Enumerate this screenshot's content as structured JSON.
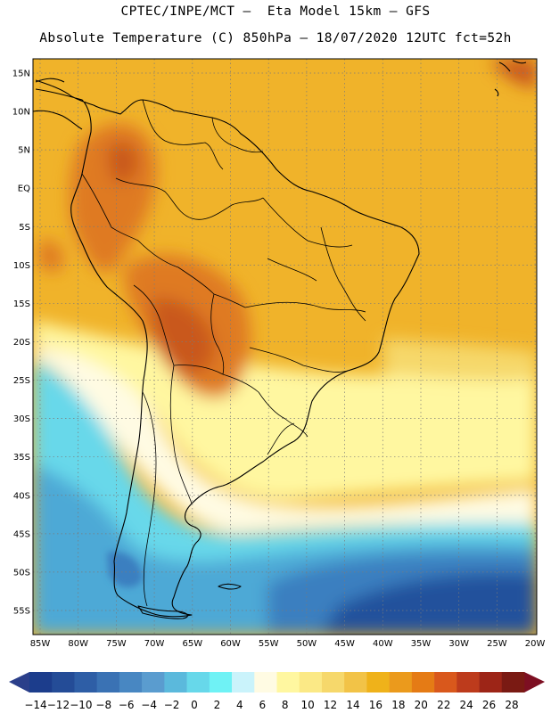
{
  "header": {
    "line1": "CPTEC/INPE/MCT –  Eta Model 15km – GFS",
    "line2": "Absolute Temperature (C) 850hPa – 18/07/2020 12UTC fct=52h"
  },
  "lat_labels": [
    "15N",
    "10N",
    "5N",
    "EQ",
    "5S",
    "10S",
    "15S",
    "20S",
    "25S",
    "30S",
    "35S",
    "40S",
    "45S",
    "50S",
    "55S"
  ],
  "lon_labels": [
    "85W",
    "80W",
    "75W",
    "70W",
    "65W",
    "60W",
    "55W",
    "50W",
    "45W",
    "40W",
    "35W",
    "30W",
    "25W",
    "20W"
  ],
  "colorbar": {
    "labels": [
      "-14",
      "-12",
      "-10",
      "-8",
      "-6",
      "-4",
      "-2",
      "0",
      "2",
      "4",
      "6",
      "8",
      "10",
      "12",
      "14",
      "16",
      "18",
      "20",
      "22",
      "24",
      "26",
      "28"
    ],
    "colors": [
      "#1c3d8c",
      "#244c97",
      "#2e5ea6",
      "#3a72b4",
      "#4887c2",
      "#5a9ccf",
      "#5bb9dc",
      "#67d8ea",
      "#6ff2f5",
      "#caf3fb",
      "#fffbe3",
      "#fff7a0",
      "#fbe986",
      "#f6d86b",
      "#f2c347",
      "#efb21a",
      "#eb9a1c",
      "#e57b15",
      "#d9581c",
      "#bd3b1c",
      "#9d2517",
      "#7a1a13"
    ],
    "under_color": "#2b3f8a",
    "over_color": "#7d0f22"
  },
  "field_colors": {
    "ocean_warm": "#f0b32a",
    "ocean_tropical": "#efa620",
    "hot": "#df7a23",
    "very_hot": "#c9591e",
    "mild": "#f6d86b",
    "pale": "#fff7a0",
    "cream": "#fffbe3",
    "cold_light": "#67d8ea",
    "cold": "#4da9d6",
    "colder": "#3a7fc0",
    "coldest": "#23519c"
  }
}
